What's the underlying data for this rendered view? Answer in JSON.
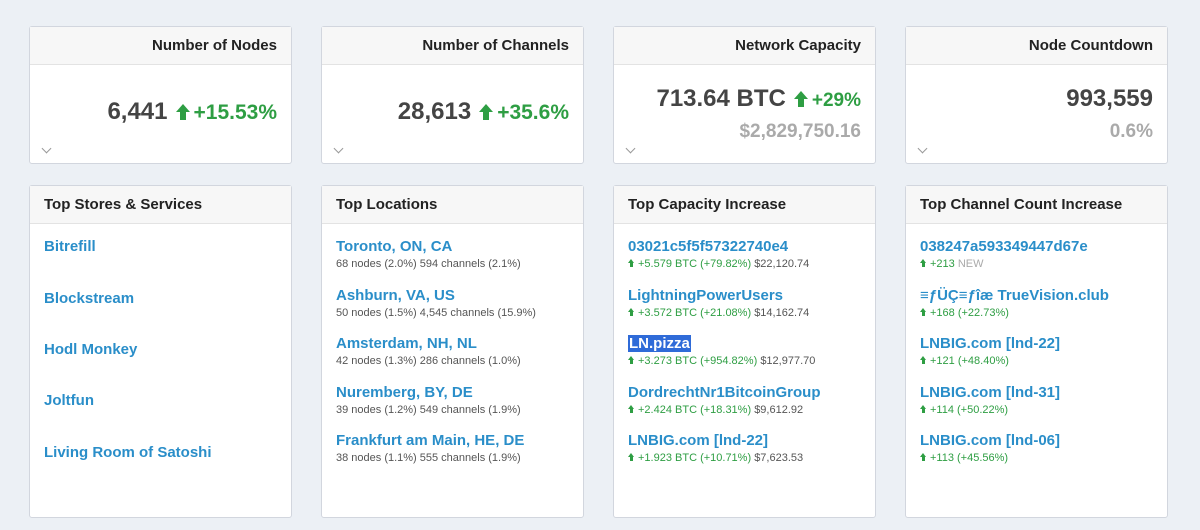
{
  "stats": {
    "nodes": {
      "title": "Number of Nodes",
      "value": "6,441",
      "delta": "+15.53%"
    },
    "channels": {
      "title": "Number of Channels",
      "value": "28,613",
      "delta": "+35.6%"
    },
    "capacity": {
      "title": "Network Capacity",
      "value": "713.64 BTC",
      "delta": "+29%",
      "usd": "$2,829,750.16"
    },
    "countdown": {
      "title": "Node Countdown",
      "value": "993,559",
      "percent": "0.6%"
    }
  },
  "stores": {
    "title": "Top Stores & Services",
    "items": [
      "Bitrefill",
      "Blockstream",
      "Hodl Monkey",
      "Joltfun",
      "Living Room of Satoshi"
    ]
  },
  "locations": {
    "title": "Top Locations",
    "items": [
      {
        "name": "Toronto, ON, CA",
        "detail": "68 nodes (2.0%) 594 channels (2.1%)"
      },
      {
        "name": "Ashburn, VA, US",
        "detail": "50 nodes (1.5%) 4,545 channels (15.9%)"
      },
      {
        "name": "Amsterdam, NH, NL",
        "detail": "42 nodes (1.3%) 286 channels (1.0%)"
      },
      {
        "name": "Nuremberg, BY, DE",
        "detail": "39 nodes (1.2%) 549 channels (1.9%)"
      },
      {
        "name": "Frankfurt am Main, HE, DE",
        "detail": "38 nodes (1.1%) 555 channels (1.9%)"
      }
    ]
  },
  "capacity_increase": {
    "title": "Top Capacity Increase",
    "items": [
      {
        "name": "03021c5f5f57322740e4",
        "delta": "+5.579 BTC (+79.82%)",
        "usd": "$22,120.74"
      },
      {
        "name": "LightningPowerUsers",
        "delta": "+3.572 BTC (+21.08%)",
        "usd": "$14,162.74"
      },
      {
        "name": "LN.pizza",
        "delta": "+3.273 BTC (+954.82%)",
        "usd": "$12,977.70"
      },
      {
        "name": "DordrechtNr1BitcoinGroup",
        "delta": "+2.424 BTC (+18.31%)",
        "usd": "$9,612.92"
      },
      {
        "name": "LNBIG.com [lnd-22]",
        "delta": "+1.923 BTC (+10.71%)",
        "usd": "$7,623.53"
      }
    ]
  },
  "channel_increase": {
    "title": "Top Channel Count Increase",
    "items": [
      {
        "name": "038247a593349447d67e",
        "delta": "+213",
        "note": "NEW"
      },
      {
        "name": "≡ƒÜÇ≡ƒîæ TrueVision.club",
        "delta": "+168 (+22.73%)",
        "note": ""
      },
      {
        "name": "LNBIG.com [lnd-22]",
        "delta": "+121 (+48.40%)",
        "note": ""
      },
      {
        "name": "LNBIG.com [lnd-31]",
        "delta": "+114 (+50.22%)",
        "note": ""
      },
      {
        "name": "LNBIG.com [lnd-06]",
        "delta": "+113 (+45.56%)",
        "note": ""
      }
    ]
  },
  "colors": {
    "link": "#2a8ec9",
    "positive": "#2e9e43",
    "muted": "#aaaaaa",
    "selection": "#2f6bd8"
  }
}
